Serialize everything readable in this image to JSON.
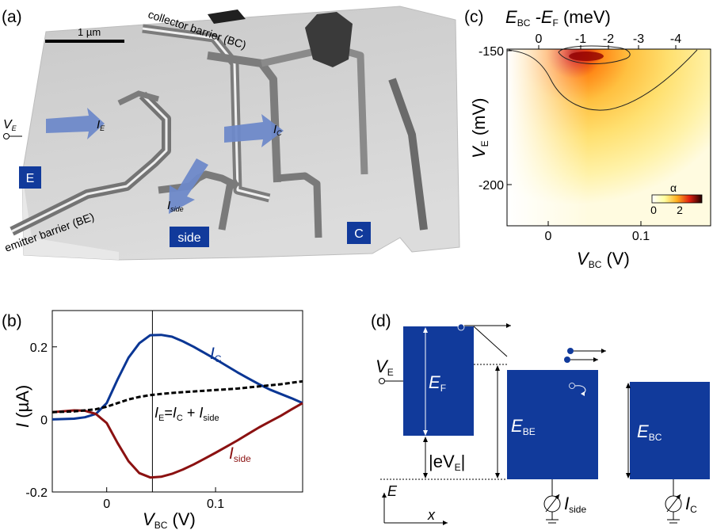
{
  "panels": {
    "a": {
      "tag": "(a)",
      "scalebar": "1 µm",
      "collector_barrier_label": "collector barrier (BC)",
      "emitter_barrier_label": "emitter barrier (BE)",
      "terminal_E": "E",
      "terminal_C": "C",
      "terminal_side": "side",
      "VE_V": "V",
      "VE_sub": "E",
      "IE_I": "I",
      "IE_sub": "E",
      "IC_I": "I",
      "IC_sub": "C",
      "Iside_I": "I",
      "Iside_sub": "side"
    },
    "c": {
      "tag": "(c)",
      "top_axis_label": "E_BC - E_F (meV)",
      "top_ticks": [
        "0",
        "-1",
        "-2",
        "-3",
        "-4"
      ],
      "y_label": "V_E (mV)",
      "y_ticks": [
        "-150",
        "-200"
      ],
      "x_label": "V_BC (V)",
      "x_ticks": [
        "0",
        "0.1"
      ],
      "colorbar_title": "α",
      "colorbar_ticks": [
        "0",
        "2"
      ]
    },
    "b": {
      "tag": "(b)",
      "label_IC_I": "I",
      "label_IC_sub": "C",
      "label_Iside_I": "I",
      "label_Iside_sub": "side",
      "label_IE_I": "I",
      "label_IE_sub": "E",
      "label_IE_eq": "=",
      "label_IE_plus": "+"
    },
    "d": {
      "tag": "(d)",
      "VE_V": "V",
      "VE_sub": "E",
      "EF_E": "E",
      "EF_sub": "F",
      "EBE_E": "E",
      "EBE_sub": "BE",
      "EBC_E": "E",
      "EBC_sub": "BC",
      "eVE": "|eV",
      "eVE_sub": "E",
      "eVE_close": "|",
      "Iside_I": "I",
      "Iside_sub": "side",
      "IC_I": "I",
      "IC_sub": "C",
      "axis_E": "E",
      "axis_x": "x"
    }
  },
  "colors": {
    "blue": "#0a3694",
    "red": "#8b1111",
    "navy": "#113a9b"
  },
  "chart_data": [
    {
      "type": "line",
      "panel": "b",
      "xlabel": "V_BC (V)",
      "ylabel": "I (µA)",
      "xlim": [
        -0.05,
        0.18
      ],
      "ylim": [
        -0.2,
        0.3
      ],
      "xticks": [
        0,
        0.1
      ],
      "yticks": [
        -0.2,
        0,
        0.2
      ],
      "vline_x": 0.042,
      "series": [
        {
          "name": "I_C",
          "color": "#0a3694",
          "style": "solid",
          "x": [
            -0.05,
            -0.03,
            -0.02,
            -0.01,
            0.0,
            0.01,
            0.02,
            0.03,
            0.04,
            0.05,
            0.06,
            0.07,
            0.08,
            0.09,
            0.1,
            0.11,
            0.12,
            0.13,
            0.14,
            0.15,
            0.16,
            0.17,
            0.18
          ],
          "y": [
            0.0,
            0.002,
            0.006,
            0.015,
            0.045,
            0.11,
            0.17,
            0.21,
            0.232,
            0.233,
            0.228,
            0.215,
            0.2,
            0.183,
            0.166,
            0.148,
            0.13,
            0.113,
            0.097,
            0.082,
            0.07,
            0.058,
            0.045
          ]
        },
        {
          "name": "I_side",
          "color": "#8b1111",
          "style": "solid",
          "x": [
            -0.05,
            -0.03,
            -0.02,
            -0.01,
            0.0,
            0.01,
            0.02,
            0.03,
            0.04,
            0.05,
            0.06,
            0.07,
            0.08,
            0.09,
            0.1,
            0.11,
            0.12,
            0.13,
            0.14,
            0.15,
            0.16,
            0.17,
            0.18
          ],
          "y": [
            0.02,
            0.025,
            0.024,
            0.015,
            -0.01,
            -0.065,
            -0.115,
            -0.148,
            -0.16,
            -0.158,
            -0.15,
            -0.138,
            -0.124,
            -0.108,
            -0.092,
            -0.075,
            -0.058,
            -0.04,
            -0.022,
            -0.006,
            0.01,
            0.028,
            0.045
          ]
        },
        {
          "name": "I_E",
          "color": "#000000",
          "style": "dashed",
          "x": [
            -0.05,
            -0.03,
            -0.02,
            -0.01,
            0.0,
            0.01,
            0.02,
            0.03,
            0.04,
            0.05,
            0.06,
            0.07,
            0.08,
            0.09,
            0.1,
            0.11,
            0.12,
            0.13,
            0.14,
            0.15,
            0.16,
            0.17,
            0.18
          ],
          "y": [
            0.02,
            0.022,
            0.025,
            0.028,
            0.035,
            0.045,
            0.055,
            0.062,
            0.067,
            0.07,
            0.073,
            0.075,
            0.077,
            0.079,
            0.081,
            0.083,
            0.085,
            0.088,
            0.091,
            0.094,
            0.097,
            0.101,
            0.105
          ]
        }
      ]
    },
    {
      "type": "heatmap",
      "panel": "c",
      "xlabel": "V_BC (V)",
      "ylabel": "V_E (mV)",
      "top_xlabel": "E_BC - E_F (meV)",
      "xlim": [
        -0.05,
        0.17
      ],
      "ylim": [
        -223,
        -148
      ],
      "colorbar": {
        "label": "α",
        "range": [
          0,
          2.8
        ],
        "ticks": [
          0,
          2
        ]
      },
      "peak": {
        "x": 0.05,
        "y": -150,
        "value": 2.8
      }
    }
  ]
}
